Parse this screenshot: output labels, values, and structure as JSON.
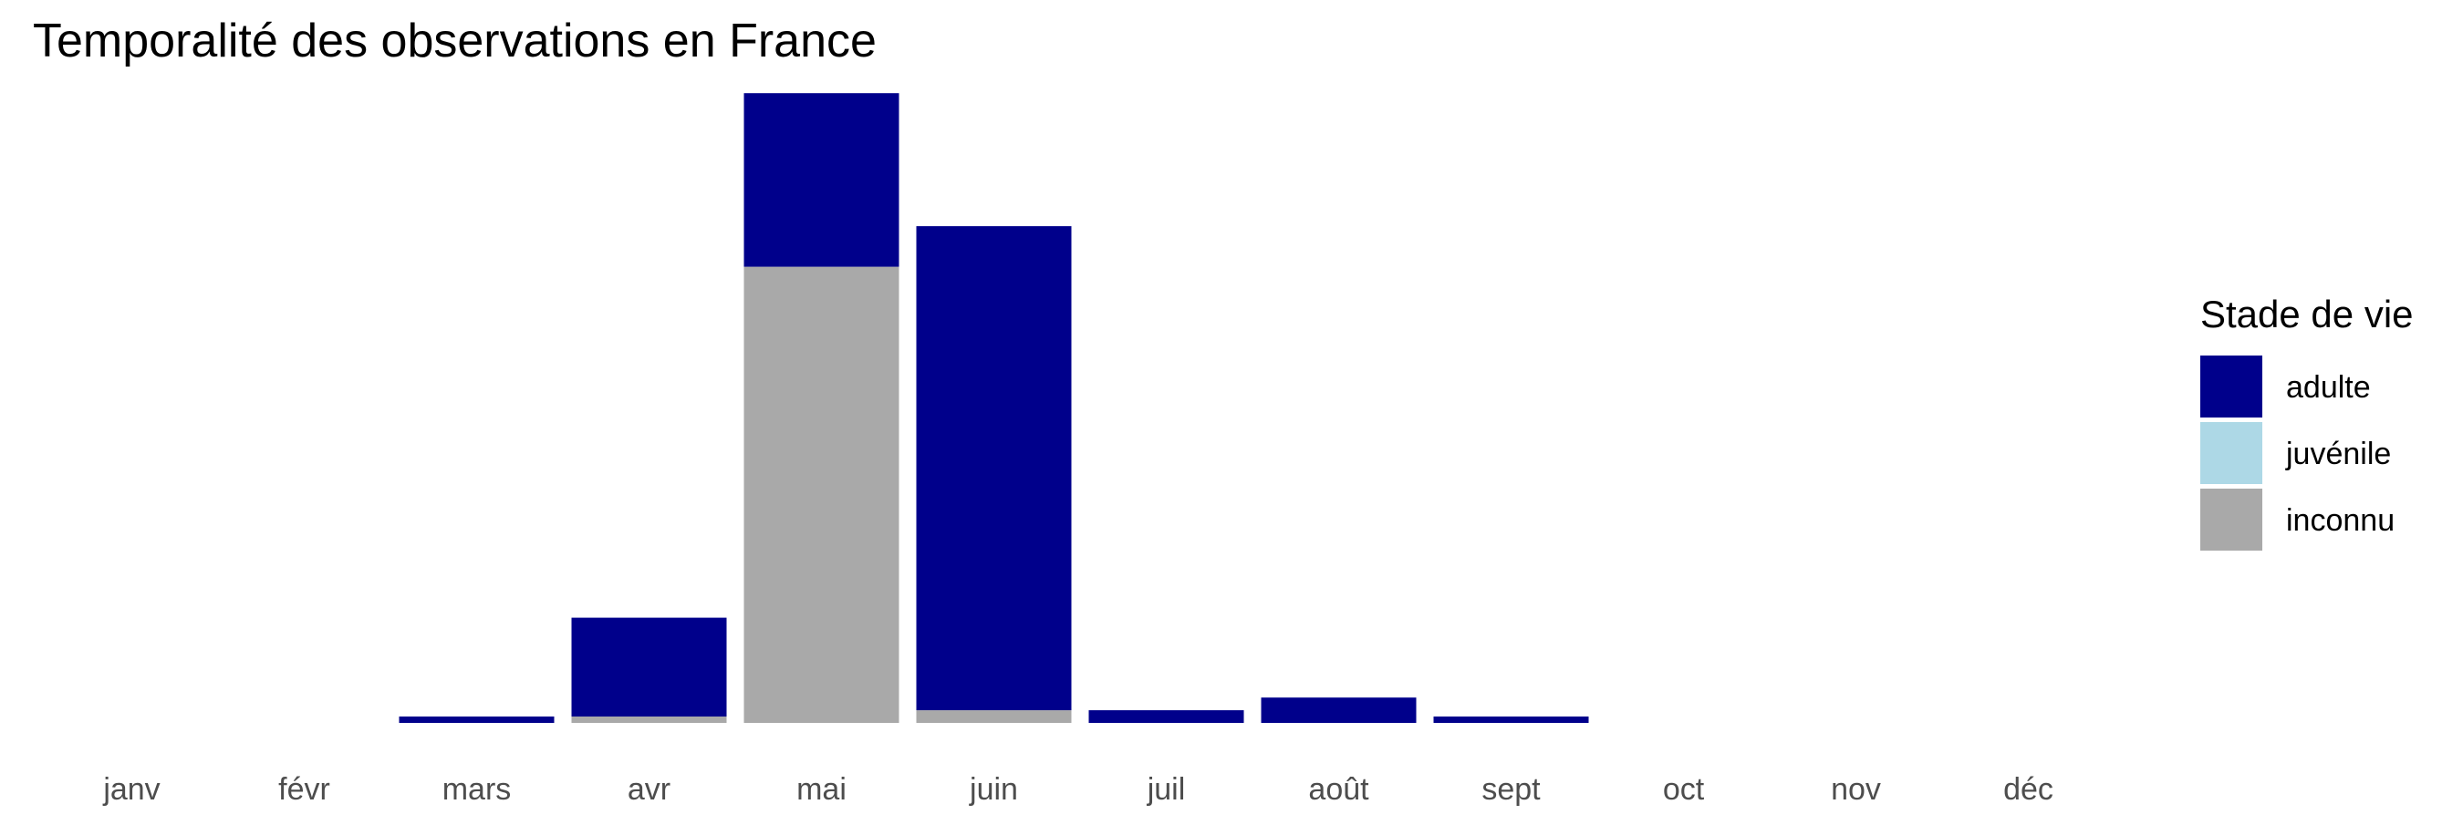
{
  "chart_data": {
    "type": "bar",
    "stacked": true,
    "title": "Temporalité des observations en France",
    "xlabel": "",
    "ylabel": "",
    "categories": [
      "janv",
      "févr",
      "mars",
      "avr",
      "mai",
      "juin",
      "juil",
      "août",
      "sept",
      "oct",
      "nov",
      "déc"
    ],
    "series": [
      {
        "name": "inconnu",
        "color": "#A9A9A9",
        "values": [
          0,
          0,
          0,
          0.5,
          36,
          1,
          0,
          0,
          0,
          0,
          0,
          0
        ]
      },
      {
        "name": "juvénile",
        "color": "#ADD8E6",
        "values": [
          0,
          0,
          0,
          0,
          0,
          0,
          0,
          0,
          0,
          0,
          0,
          0
        ]
      },
      {
        "name": "adulte",
        "color": "#00008B",
        "values": [
          0,
          0,
          0.5,
          7.8,
          13.7,
          38.2,
          1,
          2,
          0.5,
          0,
          0,
          0
        ]
      }
    ],
    "ylim": [
      0,
      50
    ],
    "grid": false,
    "legend": {
      "title": "Stade de vie",
      "position": "right",
      "entries": [
        {
          "label": "adulte",
          "color": "#00008B"
        },
        {
          "label": "juvénile",
          "color": "#ADD8E6"
        },
        {
          "label": "inconnu",
          "color": "#A9A9A9"
        }
      ]
    }
  }
}
